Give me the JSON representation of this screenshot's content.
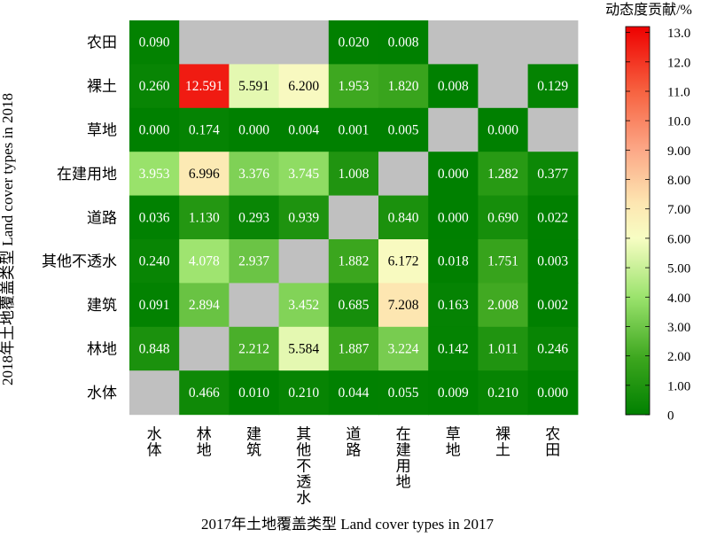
{
  "chart_data": {
    "type": "heatmap",
    "title": "",
    "xlabel": "2017年土地覆盖类型 Land cover types in 2017",
    "ylabel": "2018年土地覆盖类型 Land cover types in 2018",
    "x_categories": [
      "水体",
      "林地",
      "建筑",
      "其他不透水",
      "道路",
      "在建用地",
      "草地",
      "裸土",
      "农田"
    ],
    "y_categories": [
      "农田",
      "裸土",
      "草地",
      "在建用地",
      "道路",
      "其他不透水",
      "建筑",
      "林地",
      "水体"
    ],
    "values": [
      [
        0.09,
        null,
        null,
        null,
        0.02,
        0.008,
        null,
        null,
        null
      ],
      [
        0.26,
        12.591,
        5.591,
        6.2,
        1.953,
        1.82,
        0.008,
        null,
        0.129
      ],
      [
        0.0,
        0.174,
        0.0,
        0.004,
        0.001,
        0.005,
        null,
        0.0,
        null
      ],
      [
        3.953,
        6.996,
        3.376,
        3.745,
        1.008,
        null,
        0.0,
        1.282,
        0.377
      ],
      [
        0.036,
        1.13,
        0.293,
        0.939,
        null,
        0.84,
        0.0,
        0.69,
        0.022
      ],
      [
        0.24,
        4.078,
        2.937,
        null,
        1.882,
        6.172,
        0.018,
        1.751,
        0.003
      ],
      [
        0.091,
        2.894,
        null,
        3.452,
        0.685,
        7.208,
        0.163,
        2.008,
        0.002
      ],
      [
        0.848,
        null,
        2.212,
        5.584,
        1.887,
        3.224,
        0.142,
        1.011,
        0.246
      ],
      [
        null,
        0.466,
        0.01,
        0.21,
        0.044,
        0.055,
        0.009,
        0.21,
        0.0
      ]
    ],
    "labels": [
      [
        "0.090",
        "",
        "",
        "",
        "0.020",
        "0.008",
        "",
        "",
        ""
      ],
      [
        "0.260",
        "12.591",
        "5.591",
        "6.200",
        "1.953",
        "1.820",
        "0.008",
        "",
        "0.129"
      ],
      [
        "0.000",
        "0.174",
        "0.000",
        "0.004",
        "0.001",
        "0.005",
        "",
        "0.000",
        ""
      ],
      [
        "3.953",
        "6.996",
        "3.376",
        "3.745",
        "1.008",
        "",
        "0.000",
        "1.282",
        "0.377"
      ],
      [
        "0.036",
        "1.130",
        "0.293",
        "0.939",
        "",
        "0.840",
        "0.000",
        "0.690",
        "0.022"
      ],
      [
        "0.240",
        "4.078",
        "2.937",
        "",
        "1.882",
        "6.172",
        "0.018",
        "1.751",
        "0.003"
      ],
      [
        "0.091",
        "2.894",
        "",
        "3.452",
        "0.685",
        "7.208",
        "0.163",
        "2.008",
        "0.002"
      ],
      [
        "0.848",
        "",
        "2.212",
        "5.584",
        "1.887",
        "3.224",
        "0.142",
        "1.011",
        "0.246"
      ],
      [
        "",
        "0.466",
        "0.010",
        "0.210",
        "0.044",
        "0.055",
        "0.009",
        "0.210",
        "0.000"
      ]
    ],
    "colorbar": {
      "title": "动态度贡献/%",
      "range": [
        0,
        13.2
      ],
      "ticks": [
        0,
        1,
        2,
        3,
        4,
        5,
        6,
        7,
        8,
        9,
        10,
        11,
        12,
        13
      ],
      "tick_labels": [
        "0",
        "1.00",
        "2.00",
        "3.00",
        "4.00",
        "5.00",
        "6.00",
        "7.00",
        "8.00",
        "9.00",
        "10.0",
        "11.0",
        "12.0",
        "13.0"
      ],
      "colormap_stops": [
        {
          "v": 0.0,
          "color": "#008000"
        },
        {
          "v": 1.9,
          "color": "#3ca61e"
        },
        {
          "v": 4.0,
          "color": "#9be36d"
        },
        {
          "v": 6.0,
          "color": "#f7fdc3"
        },
        {
          "v": 7.2,
          "color": "#fde6b1"
        },
        {
          "v": 9.0,
          "color": "#fca887"
        },
        {
          "v": 11.0,
          "color": "#f76240"
        },
        {
          "v": 13.2,
          "color": "#ee0000"
        }
      ]
    },
    "missing_color": "#c0c0c0",
    "grid": false
  }
}
